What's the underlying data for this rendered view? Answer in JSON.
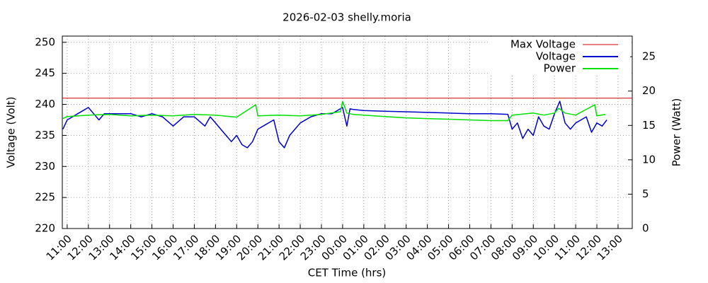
{
  "chart_data": {
    "type": "line",
    "title": "2026-02-03 shelly.moria",
    "x_label": "CET Time (hrs)",
    "y_label": "Voltage (Volt)",
    "y2_label": "Power (Watt)",
    "xlim": [
      10.77,
      37.67
    ],
    "xticks": [
      {
        "value": 11,
        "label": "11:00"
      },
      {
        "value": 12,
        "label": "12:00"
      },
      {
        "value": 13,
        "label": "13:00"
      },
      {
        "value": 14,
        "label": "14:00"
      },
      {
        "value": 15,
        "label": "15:00"
      },
      {
        "value": 16,
        "label": "16:00"
      },
      {
        "value": 17,
        "label": "17:00"
      },
      {
        "value": 18,
        "label": "18:00"
      },
      {
        "value": 19,
        "label": "19:00"
      },
      {
        "value": 20,
        "label": "20:00"
      },
      {
        "value": 21,
        "label": "21:00"
      },
      {
        "value": 22,
        "label": "22:00"
      },
      {
        "value": 23,
        "label": "23:00"
      },
      {
        "value": 24,
        "label": "00:00"
      },
      {
        "value": 25,
        "label": "01:00"
      },
      {
        "value": 26,
        "label": "02:00"
      },
      {
        "value": 27,
        "label": "03:00"
      },
      {
        "value": 28,
        "label": "04:00"
      },
      {
        "value": 29,
        "label": "05:00"
      },
      {
        "value": 30,
        "label": "06:00"
      },
      {
        "value": 31,
        "label": "07:00"
      },
      {
        "value": 32,
        "label": "08:00"
      },
      {
        "value": 33,
        "label": "09:00"
      },
      {
        "value": 34,
        "label": "10:00"
      },
      {
        "value": 35,
        "label": "11:00"
      },
      {
        "value": 36,
        "label": "12:00"
      },
      {
        "value": 37,
        "label": "13:00"
      }
    ],
    "ylim": [
      220,
      251
    ],
    "yticks": [
      220,
      225,
      230,
      235,
      240,
      245,
      250
    ],
    "y2lim": [
      0,
      28
    ],
    "y2ticks": [
      0,
      5,
      10,
      15,
      20,
      25
    ],
    "grid": true,
    "legend": "top-right",
    "reference_line": {
      "name": "Max Voltage",
      "color": "#cc0000",
      "value": 241
    },
    "series": [
      {
        "name": "Voltage",
        "color": "#0000cc",
        "x": [
          10.8,
          11,
          11.25,
          11.5,
          11.75,
          12,
          12.25,
          12.5,
          12.75,
          13,
          13.5,
          14,
          14.5,
          15,
          15.5,
          16,
          16.5,
          17,
          17.5,
          17.75,
          18,
          18.25,
          18.5,
          18.75,
          19,
          19.25,
          19.5,
          19.75,
          20,
          20.25,
          20.5,
          20.75,
          21,
          21.25,
          21.5,
          21.75,
          22,
          22.5,
          23,
          23.5,
          24,
          24.2,
          24.35,
          24.45,
          25,
          26,
          27,
          28,
          29,
          30,
          31,
          31.8,
          32,
          32.25,
          32.5,
          32.75,
          33,
          33.25,
          33.5,
          33.75,
          34,
          34.25,
          34.5,
          34.75,
          35,
          35.25,
          35.5,
          35.75,
          36,
          36.25,
          36.47
        ],
        "values": [
          236,
          237.5,
          238,
          238.5,
          239,
          239.5,
          238.5,
          237.5,
          238.5,
          238.5,
          238.5,
          238.5,
          238,
          238.5,
          238,
          236.5,
          238,
          238,
          236.5,
          238,
          237,
          236,
          235,
          234,
          235,
          233.5,
          233,
          234,
          236,
          236.5,
          237,
          237.5,
          234,
          233,
          235,
          236,
          237,
          238,
          238.5,
          238.5,
          239.5,
          236.5,
          239.3,
          239.2,
          239,
          238.9,
          238.8,
          238.7,
          238.6,
          238.5,
          238.5,
          238.4,
          236,
          237,
          234.5,
          236,
          235,
          238,
          236.5,
          236,
          238.5,
          240.5,
          237,
          236,
          237,
          237.5,
          238,
          235.5,
          237,
          236.5,
          237.5
        ]
      },
      {
        "name": "Power",
        "color": "#00e000",
        "axis": "y2",
        "x": [
          10.8,
          11,
          12,
          13,
          14,
          15,
          16,
          17,
          18,
          19,
          19.9,
          20,
          21,
          22,
          23,
          23.9,
          24,
          24.2,
          24.5,
          25,
          26,
          27,
          28,
          29,
          30,
          31,
          31.8,
          32,
          33,
          33.5,
          34,
          34.2,
          34.5,
          35,
          35.9,
          36,
          36.4
        ],
        "values": [
          16,
          16.3,
          16.5,
          16.6,
          16.4,
          16.5,
          16.4,
          16.6,
          16.5,
          16.2,
          18,
          16.4,
          16.5,
          16.4,
          16.6,
          17,
          18.5,
          16.8,
          16.6,
          16.5,
          16.3,
          16.1,
          16,
          15.9,
          15.8,
          15.7,
          15.7,
          16.5,
          16.8,
          16.5,
          16.8,
          17.5,
          16.8,
          16.5,
          18,
          16.4,
          16.6
        ]
      }
    ]
  }
}
